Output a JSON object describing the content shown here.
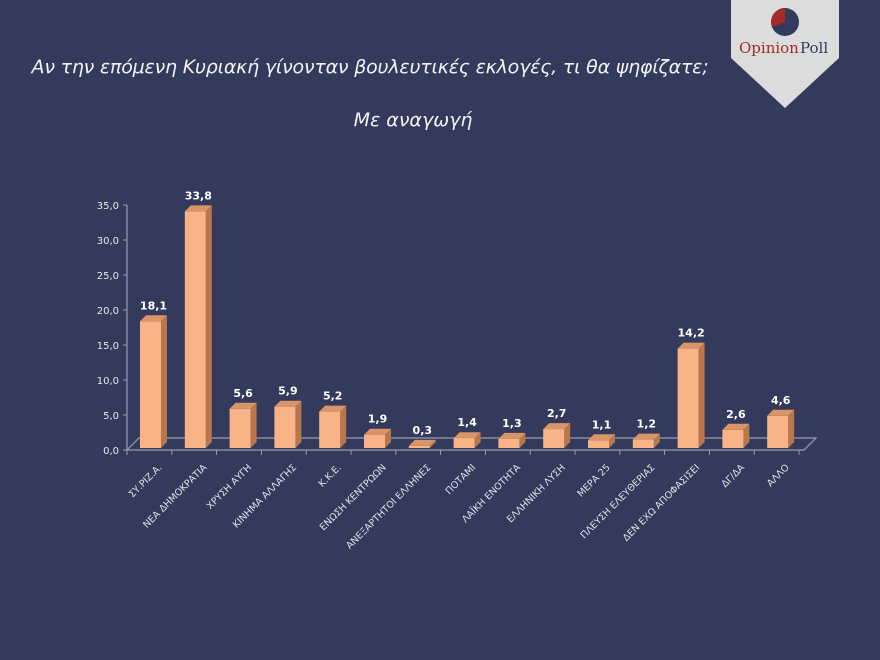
{
  "header": {
    "title": "Αν την επόμενη Κυριακή γίνονταν βουλευτικές εκλογές, τι θα ψηφίζατε;",
    "subtitle": "Με αναγωγή"
  },
  "logo": {
    "text_part1": "Opinion",
    "text_part2": "Poll",
    "icon": "pie-chart-icon"
  },
  "colors": {
    "background": "#333a5c",
    "bar_face": "#f8b487",
    "bar_side": "#b9784c",
    "bar_top": "#d99468",
    "axis": "#9a9cb0",
    "logo_red": "#a52a2a",
    "logo_navy": "#333a5c"
  },
  "chart_data": {
    "type": "bar",
    "title": "Αν την επόμενη Κυριακή γίνονταν βουλευτικές εκλογές, τι θα ψηφίζατε;",
    "subtitle": "Με αναγωγή",
    "xlabel": "",
    "ylabel": "",
    "ylim": [
      0,
      35
    ],
    "yticks": [
      "0,0",
      "5,0",
      "10,0",
      "15,0",
      "20,0",
      "25,0",
      "30,0",
      "35,0"
    ],
    "grid": false,
    "legend": "none",
    "style": "3d-column",
    "categories": [
      "ΣΥ.ΡΙΖ.Α.",
      "ΝΕΑ ΔΗΜΟΚΡΑΤΙΑ",
      "ΧΡΥΣΗ ΑΥΓΗ",
      "ΚΙΝΗΜΑ ΑΛΛΑΓΗΣ",
      "Κ.Κ.Ε.",
      "ΕΝΩΣΗ ΚΕΝΤΡΩΩΝ",
      "ΑΝΕΞΑΡΤΗΤΟΙ ΕΛΛΗΝΕΣ",
      "ΠΟΤΑΜΙ",
      "ΛΑΪΚΗ ΕΝΟΤΗΤΑ",
      "ΕΛΛΗΝΙΚΗ ΛΥΣΗ",
      "ΜΕΡΑ 25",
      "ΠΛΕΥΣΗ ΕΛΕΥΘΕΡΙΑΣ",
      "ΔΕΝ ΕΧΩ ΑΠΟΦΑΣΙΣΕΙ",
      "ΔΓ/ΔΑ",
      "ΑΛΛΟ"
    ],
    "values": [
      18.1,
      33.8,
      5.6,
      5.9,
      5.2,
      1.9,
      0.3,
      1.4,
      1.3,
      2.7,
      1.1,
      1.2,
      14.2,
      2.6,
      4.6
    ],
    "value_labels": [
      "18,1",
      "33,8",
      "5,6",
      "5,9",
      "5,2",
      "1,9",
      "0,3",
      "1,4",
      "1,3",
      "2,7",
      "1,1",
      "1,2",
      "14,2",
      "2,6",
      "4,6"
    ]
  }
}
